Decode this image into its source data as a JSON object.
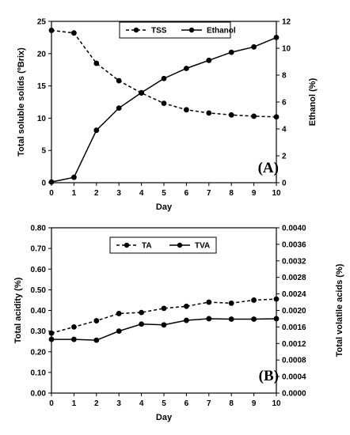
{
  "chart_data": [
    {
      "type": "line",
      "panel_label": "(A)",
      "xlabel": "Day",
      "ylabel_left": "Total soluble solids (ºBrix)",
      "ylabel_right": "Ethanol (%)",
      "x": [
        0,
        1,
        2,
        3,
        4,
        5,
        6,
        7,
        8,
        9,
        10
      ],
      "xlim": [
        0,
        10
      ],
      "xticks": [
        "0",
        "1",
        "2",
        "3",
        "4",
        "5",
        "6",
        "7",
        "8",
        "9",
        "10"
      ],
      "ylim_left": [
        0,
        25
      ],
      "yticks_left": [
        "0",
        "5",
        "10",
        "15",
        "20",
        "25"
      ],
      "ylim_right": [
        0,
        12
      ],
      "yticks_right": [
        "0",
        "2",
        "4",
        "6",
        "8",
        "10",
        "12"
      ],
      "legend_position": "top-center",
      "grid": false,
      "series": [
        {
          "name": "TSS",
          "axis": "left",
          "style": "dashed",
          "color": "#000000",
          "values": [
            23.6,
            23.2,
            18.5,
            15.8,
            13.9,
            12.3,
            11.3,
            10.8,
            10.5,
            10.3,
            10.2
          ]
        },
        {
          "name": "Ethanol",
          "axis": "right",
          "style": "solid",
          "color": "#000000",
          "values": [
            0.05,
            0.4,
            3.9,
            5.55,
            6.7,
            7.75,
            8.5,
            9.1,
            9.7,
            10.1,
            10.8
          ]
        }
      ]
    },
    {
      "type": "line",
      "panel_label": "(B)",
      "xlabel": "Day",
      "ylabel_left": "Total acidity (%)",
      "ylabel_right": "Total volatile acids (%)",
      "x": [
        0,
        1,
        2,
        3,
        4,
        5,
        6,
        7,
        8,
        9,
        10
      ],
      "xlim": [
        0,
        10
      ],
      "xticks": [
        "0",
        "1",
        "2",
        "3",
        "4",
        "5",
        "6",
        "7",
        "8",
        "9",
        "10"
      ],
      "ylim_left": [
        0,
        0.8
      ],
      "yticks_left": [
        "0.00",
        "0.10",
        "0.20",
        "0.30",
        "0.40",
        "0.50",
        "0.60",
        "0.70",
        "0.80"
      ],
      "ylim_right": [
        0,
        0.004
      ],
      "yticks_right": [
        "0.0000",
        "0.0004",
        "0.0008",
        "0.0012",
        "0.0016",
        "0.0020",
        "0.0024",
        "0.0028",
        "0.0032",
        "0.0036",
        "0.0040"
      ],
      "legend_position": "top-center",
      "grid": false,
      "series": [
        {
          "name": "TA",
          "axis": "left",
          "style": "dashed",
          "color": "#000000",
          "values": [
            0.29,
            0.32,
            0.35,
            0.385,
            0.39,
            0.41,
            0.42,
            0.44,
            0.435,
            0.45,
            0.455
          ]
        },
        {
          "name": "TVA",
          "axis": "right",
          "style": "solid",
          "color": "#000000",
          "values": [
            0.0013,
            0.0013,
            0.00128,
            0.0015,
            0.00167,
            0.00165,
            0.00176,
            0.0018,
            0.00179,
            0.00179,
            0.0018
          ]
        }
      ]
    }
  ]
}
